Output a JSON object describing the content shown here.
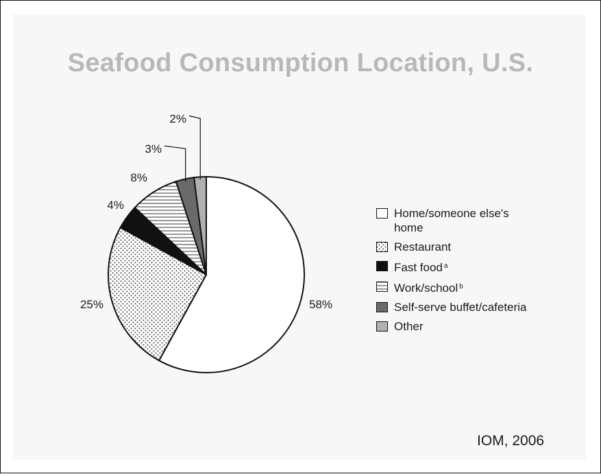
{
  "title": "Seafood Consumption Location, U.S.",
  "source": "IOM, 2006",
  "chart_data": {
    "type": "pie",
    "title": "Seafood Consumption Location, U.S.",
    "start_angle_deg": 0,
    "direction": "clockwise",
    "slices": [
      {
        "label": "Home/someone else's home",
        "value": 58,
        "display": "58%",
        "fill": "white"
      },
      {
        "label": "Restaurant",
        "value": 25,
        "display": "25%",
        "fill": "dots"
      },
      {
        "label": "Fast food",
        "footnote": "a",
        "value": 4,
        "display": "4%",
        "fill": "#111111"
      },
      {
        "label": "Work/school",
        "footnote": "b",
        "value": 8,
        "display": "8%",
        "fill": "stripes"
      },
      {
        "label": "Self-serve buffet/cafeteria",
        "value": 3,
        "display": "3%",
        "fill": "#6a6a6a"
      },
      {
        "label": "Other",
        "value": 2,
        "display": "2%",
        "fill": "#b0b0b0"
      }
    ],
    "legend_position": "right"
  },
  "legend": {
    "items": [
      {
        "label": "Home/someone else's",
        "label2": "home",
        "footnote": ""
      },
      {
        "label": "Restaurant",
        "footnote": ""
      },
      {
        "label": "Fast food",
        "footnote": "a"
      },
      {
        "label": "Work/school",
        "footnote": "b"
      },
      {
        "label": "Self-serve buffet/cafeteria",
        "footnote": ""
      },
      {
        "label": "Other",
        "footnote": ""
      }
    ]
  }
}
